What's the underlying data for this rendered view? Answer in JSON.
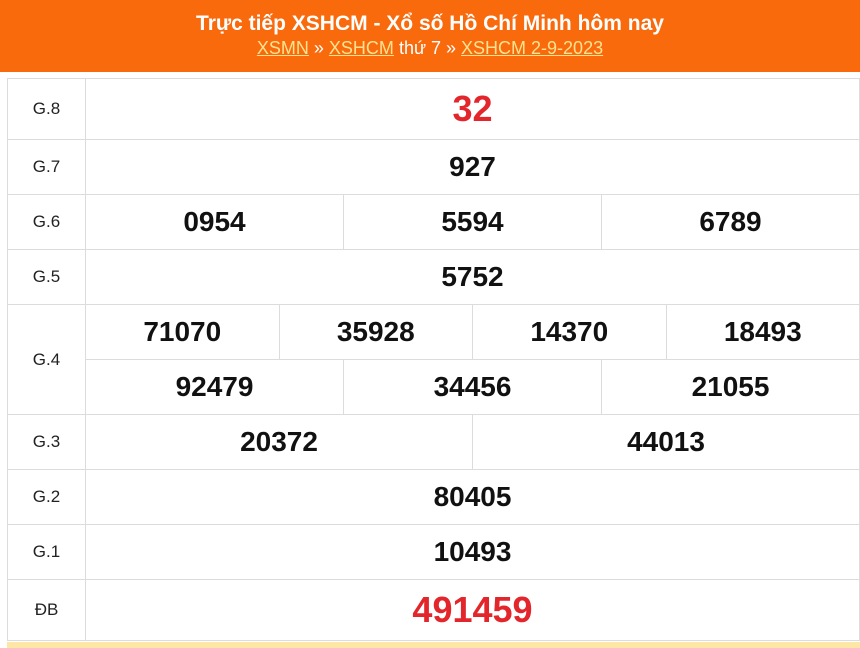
{
  "header": {
    "title": "Trực tiếp XSHCM - Xổ số Hồ Chí Minh hôm nay",
    "breadcrumb": {
      "link1": "XSMN",
      "sep1": " » ",
      "link2": "XSHCM",
      "text": " thứ 7",
      "sep2": " » ",
      "link3": "XSHCM 2-9-2023"
    },
    "color": "#f96a0c"
  },
  "results": {
    "g8": {
      "label": "G.8",
      "numbers": [
        "32"
      ]
    },
    "g7": {
      "label": "G.7",
      "numbers": [
        "927"
      ]
    },
    "g6": {
      "label": "G.6",
      "numbers": [
        "0954",
        "5594",
        "6789"
      ]
    },
    "g5": {
      "label": "G.5",
      "numbers": [
        "5752"
      ]
    },
    "g4": {
      "label": "G.4",
      "numbers": [
        "71070",
        "35928",
        "14370",
        "18493",
        "92479",
        "34456",
        "21055"
      ]
    },
    "g3": {
      "label": "G.3",
      "numbers": [
        "20372",
        "44013"
      ]
    },
    "g2": {
      "label": "G.2",
      "numbers": [
        "80405"
      ]
    },
    "g1": {
      "label": "G.1",
      "numbers": [
        "10493"
      ]
    },
    "db": {
      "label": "ĐB",
      "numbers": [
        "491459"
      ]
    }
  },
  "colors": {
    "highlight": "#e3262b"
  }
}
